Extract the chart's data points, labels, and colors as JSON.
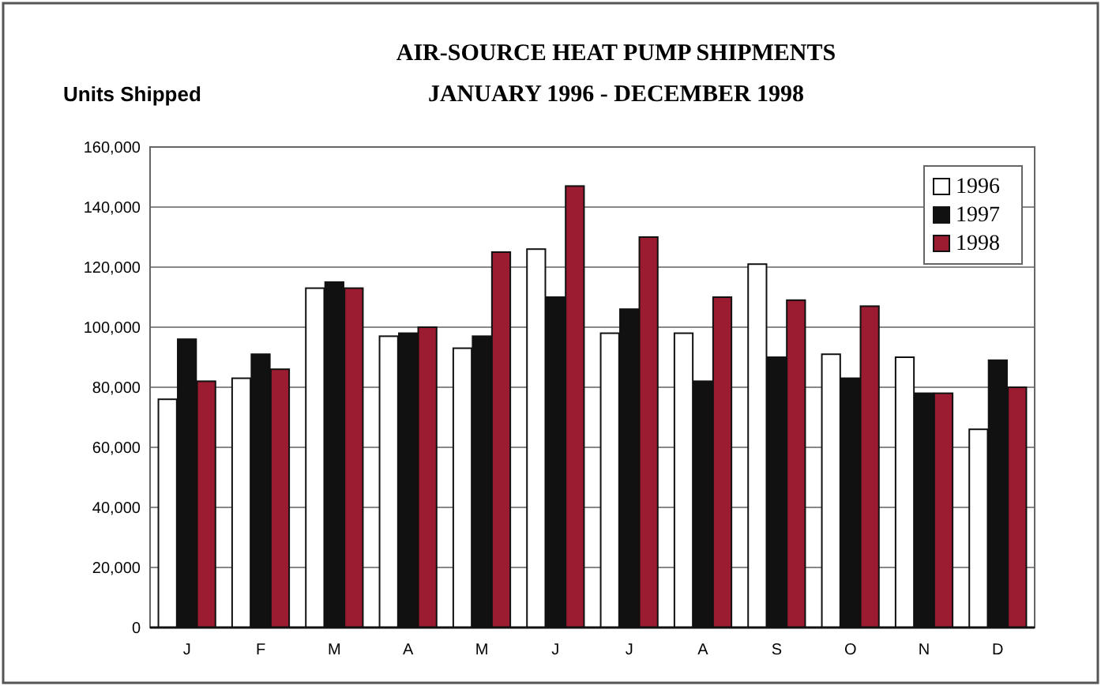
{
  "chart_data": {
    "type": "bar",
    "title": "AIR-SOURCE HEAT PUMP SHIPMENTS",
    "subtitle": "JANUARY 1996 - DECEMBER 1998",
    "ylabel": "Units Shipped",
    "categories": [
      "J",
      "F",
      "M",
      "A",
      "M",
      "J",
      "J",
      "A",
      "S",
      "O",
      "N",
      "D"
    ],
    "series": [
      {
        "name": "1996",
        "color": "#ffffff",
        "values": [
          76000,
          83000,
          113000,
          97000,
          93000,
          126000,
          98000,
          98000,
          121000,
          91000,
          90000,
          66000
        ]
      },
      {
        "name": "1997",
        "color": "#111111",
        "values": [
          96000,
          91000,
          115000,
          98000,
          97000,
          110000,
          106000,
          82000,
          90000,
          83000,
          78000,
          89000
        ]
      },
      {
        "name": "1998",
        "color": "#9b1b30",
        "values": [
          82000,
          86000,
          113000,
          100000,
          125000,
          147000,
          130000,
          110000,
          109000,
          107000,
          78000,
          80000
        ]
      }
    ],
    "ylim": [
      0,
      160000
    ],
    "yticks": [
      {
        "value": 0,
        "label": "0"
      },
      {
        "value": 20000,
        "label": "20,000"
      },
      {
        "value": 40000,
        "label": "40,000"
      },
      {
        "value": 60000,
        "label": "60,000"
      },
      {
        "value": 80000,
        "label": "80,000"
      },
      {
        "value": 100000,
        "label": "100,000"
      },
      {
        "value": 120000,
        "label": "120,000"
      },
      {
        "value": 140000,
        "label": "140,000"
      },
      {
        "value": 160000,
        "label": "160,000"
      }
    ],
    "grid": "y",
    "legend": "top right"
  }
}
